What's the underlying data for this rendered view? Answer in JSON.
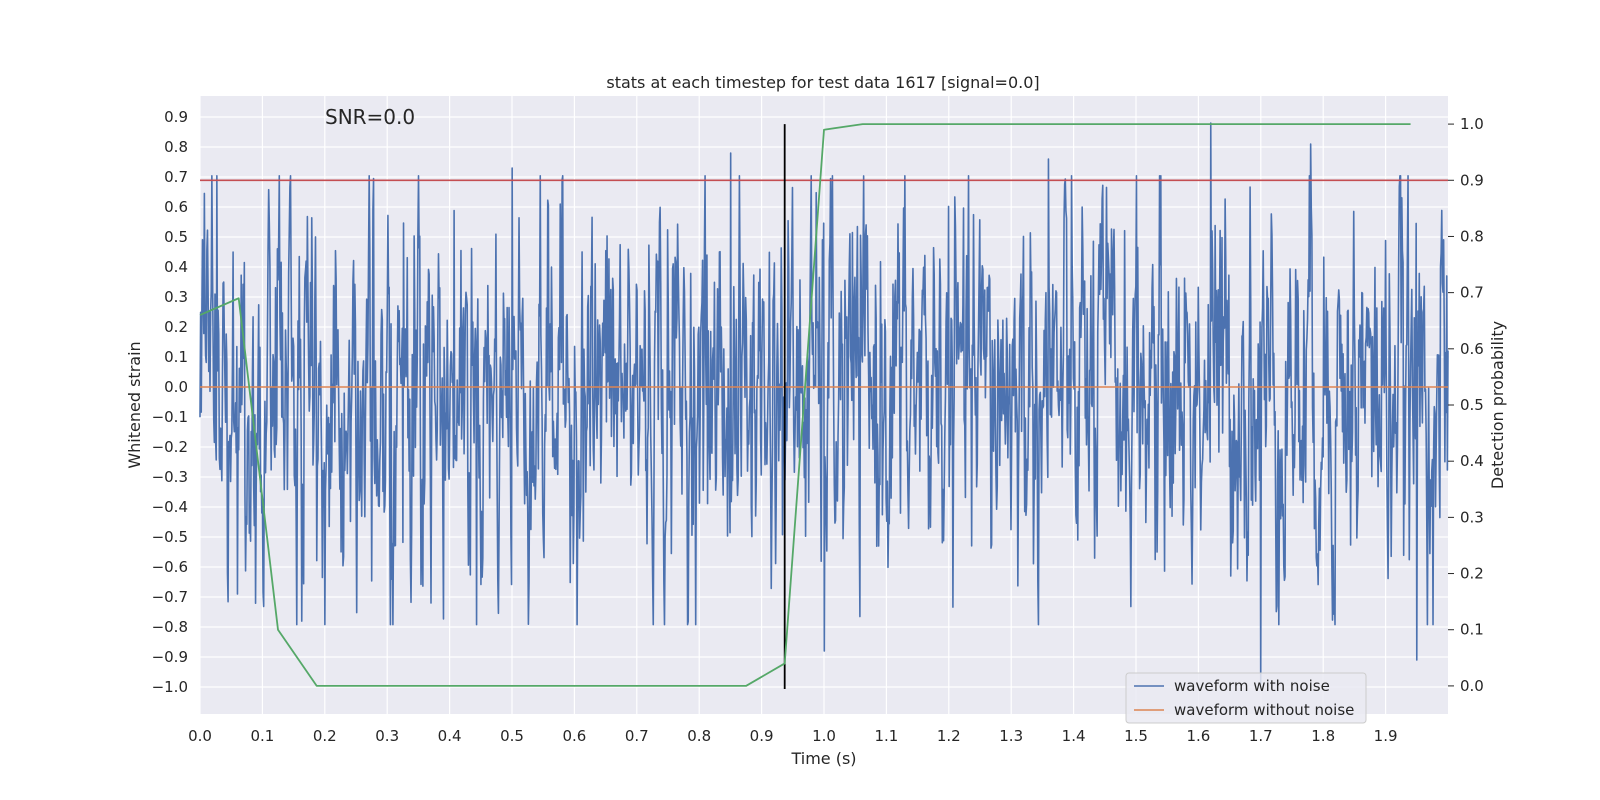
{
  "chart_data": {
    "type": "line",
    "title": "stats at each timestep for test data 1617 [signal=0.0]",
    "xlabel": "Time (s)",
    "ylabel": "Whitened strain",
    "y2label": "Detection probability",
    "annotation": "SNR=0.0",
    "xlim": [
      0.0,
      2.0
    ],
    "ylim": [
      -1.09,
      0.97
    ],
    "y2lim": [
      -0.05,
      1.05
    ],
    "xticks": [
      "0.0",
      "0.1",
      "0.2",
      "0.3",
      "0.4",
      "0.5",
      "0.6",
      "0.7",
      "0.8",
      "0.9",
      "1.0",
      "1.1",
      "1.2",
      "1.3",
      "1.4",
      "1.5",
      "1.6",
      "1.7",
      "1.8",
      "1.9"
    ],
    "yticks": [
      "0.9",
      "0.8",
      "0.7",
      "0.6",
      "0.5",
      "0.4",
      "0.3",
      "0.2",
      "0.1",
      "0.0",
      "-0.1",
      "-0.2",
      "-0.3",
      "-0.4",
      "-0.5",
      "-0.6",
      "-0.7",
      "-0.8",
      "-0.9",
      "-1.0"
    ],
    "y2ticks": [
      "1.0",
      "0.9",
      "0.8",
      "0.7",
      "0.6",
      "0.5",
      "0.4",
      "0.3",
      "0.2",
      "0.1",
      "0.0"
    ],
    "grid": true,
    "legend_position": "lower-right",
    "series": [
      {
        "name": "waveform with noise",
        "color": "#4c72b0",
        "kind": "noise",
        "samples": 2000,
        "amplitude_range": [
          -0.99,
          0.88
        ],
        "notable_peaks": [
          [
            0.5,
            0.73
          ],
          [
            0.85,
            0.78
          ],
          [
            1.36,
            0.76
          ],
          [
            1.62,
            0.88
          ],
          [
            1.78,
            0.81
          ]
        ],
        "notable_troughs": [
          [
            0.06,
            -0.69
          ],
          [
            0.37,
            -0.72
          ],
          [
            1.0,
            -0.88
          ],
          [
            1.7,
            -0.99
          ],
          [
            1.95,
            -0.91
          ]
        ]
      },
      {
        "name": "waveform without noise",
        "color": "#dd8452",
        "kind": "constant",
        "value": 0.0
      },
      {
        "color": "#55a868",
        "axis": "right",
        "kind": "line",
        "x": [
          0.0,
          0.062,
          0.125,
          0.187,
          0.875,
          0.937,
          1.0,
          1.062,
          1.94
        ],
        "values": [
          0.66,
          0.69,
          0.1,
          0.0,
          0.0,
          0.04,
          0.99,
          1.0,
          1.0
        ]
      }
    ],
    "threshold": {
      "axis": "right",
      "value": 0.9,
      "color": "#c44e52"
    },
    "marker_line": {
      "x": 0.937,
      "color": "#000000"
    }
  }
}
